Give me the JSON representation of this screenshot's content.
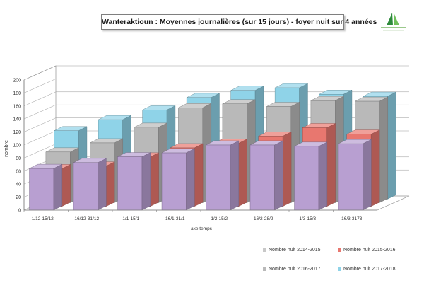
{
  "colors": {
    "s2014": "#c8c8c8",
    "s2015": "#e8776f",
    "s2016": "#b9b9b9",
    "s2017": "#8fd3e8",
    "front": "#b89fd1",
    "axis": "#7f7f7f"
  },
  "chart_data": {
    "type": "bar",
    "title": "Wanteraktioun : Moyennes journalières (sur 15 jours) - foyer nuit sur 4 années",
    "xlabel": "axe temps",
    "ylabel": "nombre",
    "ylim": [
      0,
      200
    ],
    "yticks": [
      0,
      20,
      40,
      60,
      80,
      100,
      120,
      140,
      160,
      180,
      200
    ],
    "categories": [
      "1/12-15/12",
      "16/12-31/12",
      "1/1-15/1",
      "16/1-31/1",
      "1/2-15/2",
      "16/2-28/2",
      "1/3-15/3",
      "16/3-3173"
    ],
    "series": [
      {
        "name": "Nombre nuit 2014-2015",
        "values": [
          64,
          73,
          82,
          88,
          100,
          100,
          98,
          102
        ]
      },
      {
        "name": "Nombre nuit 2015-2016",
        "values": [
          58,
          62,
          76,
          90,
          97,
          108,
          121,
          111
        ]
      },
      {
        "name": "Nombre nuit 2016-2017",
        "values": [
          78,
          92,
          116,
          146,
          152,
          148,
          157,
          156
        ]
      },
      {
        "name": "Nombre nuit 2017-2018",
        "values": [
          105,
          122,
          137,
          156,
          167,
          171,
          161,
          158
        ]
      }
    ],
    "grid": true,
    "legend_position": "bottom-right"
  }
}
